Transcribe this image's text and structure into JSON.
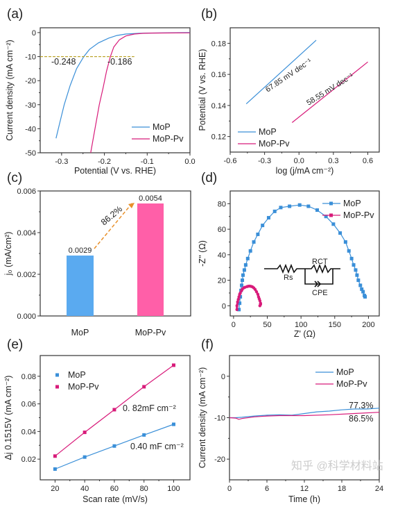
{
  "colors": {
    "mop_line": "#3a8fd8",
    "mop_pv_line": "#d81b7a",
    "mop_bar": "#5aaaf0",
    "mop_pv_bar": "#ff5fa8",
    "dashed_ref": "#b8a020",
    "arrow": "#e8902a"
  },
  "watermark": "知乎 @科学材料站",
  "chart_data": [
    {
      "panel": "(a)",
      "type": "line",
      "xlabel": "Potential (V vs. RHE)",
      "ylabel": "Current density (mA cm⁻²)",
      "xlim": [
        -0.35,
        0
      ],
      "ylim": [
        -50,
        2
      ],
      "xticks": [
        "-0.3",
        "-0.2",
        "-0.1",
        "0.0"
      ],
      "yticks": [
        "0",
        "-10",
        "-20",
        "-30",
        "-40",
        "-50"
      ],
      "legend": "bottom-right",
      "grid": false,
      "reference_line": {
        "y": -10,
        "x": [
          -0.35,
          -0.13
        ]
      },
      "annotations": [
        "-0.248",
        "-0.186"
      ],
      "series": [
        {
          "name": "MoP",
          "x": [
            -0.313,
            -0.305,
            -0.294,
            -0.28,
            -0.265,
            -0.248,
            -0.235,
            -0.214,
            -0.19,
            -0.171,
            -0.15,
            -0.12,
            -0.1,
            0
          ],
          "y": [
            -44,
            -38,
            -30,
            -22,
            -15,
            -10,
            -7,
            -4.3,
            -2.3,
            -1.2,
            -0.6,
            -0.3,
            -0.2,
            0
          ]
        },
        {
          "name": "MoP-Pv",
          "x": [
            -0.232,
            -0.222,
            -0.212,
            -0.203,
            -0.195,
            -0.186,
            -0.178,
            -0.165,
            -0.15,
            -0.13,
            -0.11,
            -0.09,
            0
          ],
          "y": [
            -50,
            -40,
            -30,
            -23,
            -16,
            -10,
            -6,
            -3,
            -1.4,
            -0.6,
            -0.3,
            -0.2,
            -0.1
          ]
        }
      ]
    },
    {
      "panel": "(b)",
      "type": "line",
      "xlabel": "log (j/mA cm⁻²)",
      "ylabel": "Potential (V vs. RHE)",
      "xlim": [
        -0.6,
        0.7
      ],
      "ylim": [
        0.11,
        0.19
      ],
      "xticks": [
        "-0.6",
        "-0.3",
        "0.0",
        "0.3",
        "0.6"
      ],
      "yticks": [
        "0.12",
        "0.14",
        "0.16",
        "0.18"
      ],
      "legend": "bottom-left",
      "grid": false,
      "annotations": [
        "67.85 mV dec⁻¹",
        "58.55 mV dec⁻¹"
      ],
      "series": [
        {
          "name": "MoP",
          "x": [
            -0.46,
            0.15
          ],
          "y": [
            0.141,
            0.182
          ]
        },
        {
          "name": "MoP-Pv",
          "x": [
            -0.06,
            0.6
          ],
          "y": [
            0.129,
            0.168
          ]
        }
      ]
    },
    {
      "panel": "(c)",
      "type": "bar",
      "xlabel": "",
      "ylabel": "j₀ (mA/cm²)",
      "ylim": [
        0,
        0.006
      ],
      "yticks": [
        "0.000",
        "0.002",
        "0.004",
        "0.006"
      ],
      "categories": [
        "MoP",
        "MoP-Pv"
      ],
      "values": [
        0.0029,
        0.0054
      ],
      "data_labels": [
        "0.0029",
        "0.0054"
      ],
      "annotations": [
        "86.2%"
      ],
      "grid": false
    },
    {
      "panel": "(d)",
      "type": "scatter",
      "xlabel": "Z' (Ω)",
      "ylabel": "-Z'' (Ω)",
      "xlim": [
        -5,
        216
      ],
      "ylim": [
        -8,
        90
      ],
      "xticks": [
        "0",
        "50",
        "100",
        "150",
        "200"
      ],
      "yticks": [
        "0",
        "20",
        "40",
        "60",
        "80"
      ],
      "legend": "top-right",
      "grid": false,
      "circuit_labels": [
        "Rs",
        "RCT",
        "CPE"
      ],
      "series": [
        {
          "name": "MoP",
          "x": [
            8,
            9,
            10,
            11,
            12,
            13,
            14,
            16,
            18,
            21,
            25,
            30,
            36,
            43,
            52,
            61,
            70,
            83,
            98,
            111,
            124,
            137,
            148,
            158,
            166,
            171,
            175,
            178,
            181,
            183,
            185,
            188,
            190,
            192,
            194,
            195
          ],
          "y": [
            -3,
            2,
            7,
            12,
            16,
            20,
            24,
            28,
            32,
            37,
            43,
            50,
            56,
            63,
            69,
            74,
            77,
            78,
            79,
            78,
            75,
            70,
            64,
            57,
            50,
            43,
            37,
            32,
            28,
            24,
            20,
            16,
            13,
            11,
            8,
            7
          ]
        },
        {
          "name": "MoP-Pv",
          "x": [
            5,
            5,
            6,
            7,
            8,
            9,
            10,
            12,
            13,
            15,
            17,
            20,
            22,
            24,
            26,
            28,
            30,
            32,
            34,
            36,
            37,
            38,
            39,
            40,
            40,
            39,
            40
          ],
          "y": [
            -3,
            0,
            3,
            5,
            7,
            9,
            10,
            12,
            13,
            14,
            14.5,
            15,
            15.3,
            15.4,
            15.2,
            14.8,
            14,
            12.8,
            11,
            9,
            7,
            5.5,
            4,
            2,
            1,
            0,
            1.5
          ]
        }
      ]
    },
    {
      "panel": "(e)",
      "type": "scatter",
      "xlabel": "Scan rate (mV/s)",
      "ylabel": "Δj 0.1515V (mA cm⁻²)",
      "xlim": [
        10,
        111
      ],
      "ylim": [
        0.005,
        0.095
      ],
      "xticks": [
        "20",
        "40",
        "60",
        "80",
        "100"
      ],
      "yticks": [
        "0.02",
        "0.04",
        "0.06",
        "0.08"
      ],
      "legend": "top-left",
      "grid": false,
      "annotations": [
        "0. 82mF cm⁻²",
        "0.40 mF cm⁻²"
      ],
      "series": [
        {
          "name": "MoP",
          "x": [
            20,
            40,
            60,
            80,
            100
          ],
          "y": [
            0.0128,
            0.0215,
            0.0295,
            0.0375,
            0.0452
          ]
        },
        {
          "name": "MoP-Pv",
          "x": [
            20,
            40,
            60,
            80,
            100
          ],
          "y": [
            0.0222,
            0.0394,
            0.0558,
            0.0724,
            0.088
          ]
        }
      ]
    },
    {
      "panel": "(f)",
      "type": "line",
      "xlabel": "Time (h)",
      "ylabel": "Current density (mA cm⁻²)",
      "xlim": [
        0,
        24
      ],
      "ylim": [
        -25,
        5
      ],
      "xticks": [
        "0",
        "6",
        "12",
        "18",
        "24"
      ],
      "yticks": [
        "0",
        "-10",
        "-20"
      ],
      "legend": "top-right",
      "grid": false,
      "annotations": [
        "77.3%",
        "86.5%"
      ],
      "series": [
        {
          "name": "MoP",
          "x": [
            0,
            1,
            2,
            4,
            6,
            8,
            10,
            11,
            12,
            14,
            16,
            18,
            20,
            22,
            24
          ],
          "y": [
            -10,
            -10,
            -9.9,
            -9.6,
            -9.4,
            -9.3,
            -9.4,
            -9.2,
            -9,
            -8.6,
            -8.4,
            -8.1,
            -7.9,
            -7.9,
            -7.7
          ]
        },
        {
          "name": "MoP-Pv",
          "x": [
            0,
            1,
            1.5,
            2,
            4,
            6,
            8,
            12,
            16,
            20,
            24
          ],
          "y": [
            -10,
            -10.1,
            -10.4,
            -10.2,
            -9.8,
            -9.6,
            -9.5,
            -9.5,
            -9.3,
            -9.0,
            -8.7
          ]
        }
      ]
    }
  ]
}
